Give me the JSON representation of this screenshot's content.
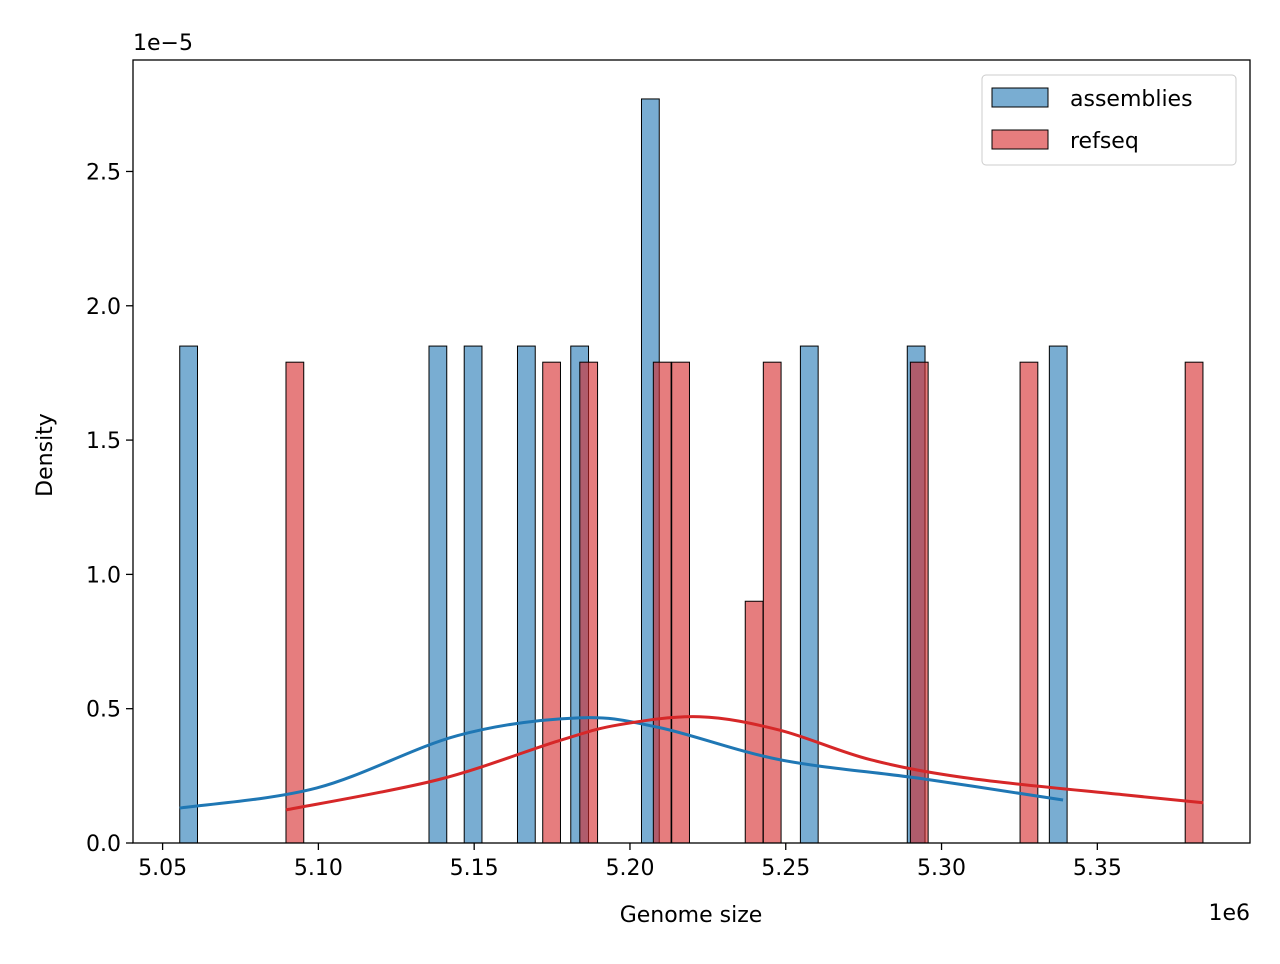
{
  "chart_data": {
    "type": "bar",
    "xlabel": "Genome size",
    "ylabel": "Density",
    "x_offset_label": "1e6",
    "y_offset_label": "1e−5",
    "xlim": [
      5.0405,
      5.399
    ],
    "ylim": [
      0,
      2.915
    ],
    "x_unit_scale": 1000000,
    "y_unit_scale": 1e-05,
    "xticks": [
      5.05,
      5.1,
      5.15,
      5.2,
      5.25,
      5.3,
      5.35
    ],
    "xtick_labels": [
      "5.05",
      "5.10",
      "5.15",
      "5.20",
      "5.25",
      "5.30",
      "5.35"
    ],
    "yticks": [
      0.0,
      0.5,
      1.0,
      1.5,
      2.0,
      2.5
    ],
    "ytick_labels": [
      "0.0",
      "0.5",
      "1.0",
      "1.5",
      "2.0",
      "2.5"
    ],
    "grid": false,
    "legend_position": "top-right",
    "series": [
      {
        "name": "assemblies",
        "color": "#1f77b4",
        "bin_width": 0.0057,
        "bins": [
          {
            "left": 5.0555,
            "density": 1.85
          },
          {
            "left": 5.1355,
            "density": 1.85
          },
          {
            "left": 5.1468,
            "density": 1.85
          },
          {
            "left": 5.1639,
            "density": 1.85
          },
          {
            "left": 5.181,
            "density": 1.85
          },
          {
            "left": 5.2037,
            "density": 2.77
          },
          {
            "left": 5.2547,
            "density": 1.85
          },
          {
            "left": 5.289,
            "density": 1.85
          },
          {
            "left": 5.3346,
            "density": 1.85
          }
        ],
        "kde": [
          [
            5.0555,
            0.13
          ],
          [
            5.0995,
            0.205
          ],
          [
            5.1447,
            0.4
          ],
          [
            5.1835,
            0.466
          ],
          [
            5.2093,
            0.43
          ],
          [
            5.2481,
            0.31
          ],
          [
            5.2934,
            0.24
          ],
          [
            5.339,
            0.16
          ]
        ]
      },
      {
        "name": "refseq",
        "color": "#d62728",
        "bin_width": 0.0057,
        "bins": [
          {
            "left": 5.0896,
            "density": 1.79
          },
          {
            "left": 5.172,
            "density": 1.79
          },
          {
            "left": 5.1839,
            "density": 1.79
          },
          {
            "left": 5.2075,
            "density": 1.79
          },
          {
            "left": 5.2134,
            "density": 1.79
          },
          {
            "left": 5.237,
            "density": 0.9
          },
          {
            "left": 5.2428,
            "density": 1.79
          },
          {
            "left": 5.29,
            "density": 1.79
          },
          {
            "left": 5.3252,
            "density": 1.79
          },
          {
            "left": 5.3782,
            "density": 1.79
          }
        ],
        "kde": [
          [
            5.0896,
            0.123
          ],
          [
            5.1382,
            0.235
          ],
          [
            5.177,
            0.38
          ],
          [
            5.1964,
            0.44
          ],
          [
            5.2223,
            0.47
          ],
          [
            5.2481,
            0.42
          ],
          [
            5.2772,
            0.31
          ],
          [
            5.3095,
            0.24
          ],
          [
            5.358,
            0.18
          ],
          [
            5.384,
            0.15
          ]
        ]
      }
    ]
  }
}
